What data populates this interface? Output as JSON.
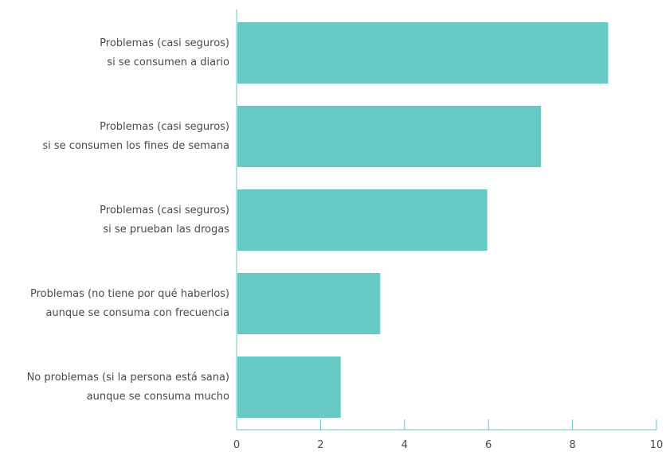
{
  "chart_data": {
    "type": "bar",
    "orientation": "horizontal",
    "title": "",
    "xlabel": "",
    "ylabel": "",
    "categories": [
      [
        "Problemas (casi seguros)",
        "si se consumen a diario"
      ],
      [
        "Problemas (casi seguros)",
        "si se consumen los fines de semana"
      ],
      [
        "Problemas (casi seguros)",
        "si se prueban las drogas"
      ],
      [
        "Problemas (no tiene por qué haberlos)",
        "aunque se consuma con frecuencia"
      ],
      [
        "No problemas (si la persona está sana)",
        "aunque se consuma mucho"
      ]
    ],
    "values": [
      8.85,
      7.25,
      5.97,
      3.42,
      2.48
    ],
    "xlim": [
      0,
      10
    ],
    "xticks": [
      "0",
      "2",
      "4",
      "6",
      "8",
      "10"
    ],
    "xtick_values": [
      0,
      2,
      4,
      6,
      8,
      10
    ],
    "grid": false,
    "legend": "none",
    "colors": {
      "bar": "#67c9c4",
      "axis": "#5fc8c2",
      "text": "#4a4a4a"
    }
  }
}
